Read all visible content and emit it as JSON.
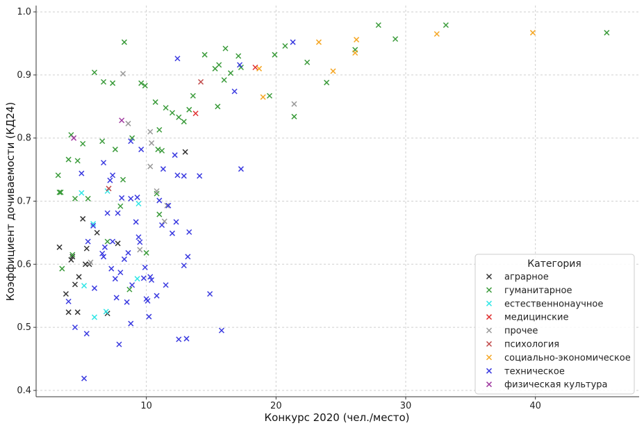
{
  "chart_data": {
    "type": "scatter",
    "title": "",
    "xlabel": "Конкурс 2020 (чел./место)",
    "ylabel": "Коэффициент дочиваемости (КД24)",
    "xlim": [
      1.5,
      48
    ],
    "ylim": [
      0.39,
      1.01
    ],
    "xticks": [
      10,
      20,
      30,
      40
    ],
    "yticks": [
      0.4,
      0.5,
      0.6,
      0.7,
      0.8,
      0.9,
      1.0
    ],
    "xtick_labels": [
      "10",
      "20",
      "30",
      "40"
    ],
    "ytick_labels": [
      "0.4",
      "0.5",
      "0.6",
      "0.7",
      "0.8",
      "0.9",
      "1.0"
    ],
    "grid": true,
    "marker": "x",
    "legend": {
      "title": "Категория",
      "position": "bottom-right"
    },
    "series": [
      {
        "name": "аграрное",
        "color": "#333333",
        "points": [
          [
            3.3,
            0.627
          ],
          [
            3.8,
            0.553
          ],
          [
            4.0,
            0.524
          ],
          [
            4.2,
            0.607
          ],
          [
            4.3,
            0.612
          ],
          [
            4.5,
            0.568
          ],
          [
            4.7,
            0.524
          ],
          [
            4.8,
            0.58
          ],
          [
            5.1,
            0.672
          ],
          [
            5.3,
            0.6
          ],
          [
            5.4,
            0.625
          ],
          [
            5.6,
            0.6
          ],
          [
            6.2,
            0.65
          ],
          [
            7.0,
            0.522
          ],
          [
            7.8,
            0.633
          ],
          [
            13.0,
            0.778
          ]
        ]
      },
      {
        "name": "гуманитарное",
        "color": "#3a9b3a",
        "points": [
          [
            3.2,
            0.741
          ],
          [
            3.3,
            0.714
          ],
          [
            3.4,
            0.714
          ],
          [
            3.5,
            0.593
          ],
          [
            4.0,
            0.766
          ],
          [
            4.2,
            0.805
          ],
          [
            4.3,
            0.615
          ],
          [
            4.5,
            0.704
          ],
          [
            4.7,
            0.764
          ],
          [
            5.1,
            0.791
          ],
          [
            5.5,
            0.704
          ],
          [
            6.0,
            0.904
          ],
          [
            6.6,
            0.795
          ],
          [
            6.7,
            0.889
          ],
          [
            7.0,
            0.636
          ],
          [
            7.4,
            0.887
          ],
          [
            7.6,
            0.782
          ],
          [
            8.0,
            0.692
          ],
          [
            8.2,
            0.734
          ],
          [
            8.3,
            0.952
          ],
          [
            8.7,
            0.56
          ],
          [
            8.9,
            0.8
          ],
          [
            9.6,
            0.887
          ],
          [
            9.9,
            0.883
          ],
          [
            10.0,
            0.618
          ],
          [
            10.7,
            0.857
          ],
          [
            10.8,
            0.712
          ],
          [
            10.9,
            0.782
          ],
          [
            11.0,
            0.679
          ],
          [
            11.2,
            0.78
          ],
          [
            11.5,
            0.848
          ],
          [
            12.0,
            0.84
          ],
          [
            12.5,
            0.833
          ],
          [
            12.9,
            0.826
          ],
          [
            13.3,
            0.845
          ],
          [
            13.6,
            0.867
          ],
          [
            14.5,
            0.932
          ],
          [
            15.3,
            0.91
          ],
          [
            15.6,
            0.916
          ],
          [
            16.0,
            0.892
          ],
          [
            16.1,
            0.942
          ],
          [
            16.5,
            0.903
          ],
          [
            17.1,
            0.93
          ],
          [
            17.3,
            0.912
          ],
          [
            19.5,
            0.867
          ],
          [
            19.9,
            0.932
          ],
          [
            20.7,
            0.946
          ],
          [
            21.4,
            0.834
          ],
          [
            22.4,
            0.92
          ],
          [
            23.9,
            0.888
          ],
          [
            26.1,
            0.94
          ],
          [
            27.9,
            0.979
          ],
          [
            29.2,
            0.957
          ],
          [
            33.1,
            0.979
          ],
          [
            45.5,
            0.967
          ],
          [
            11.0,
            0.813
          ],
          [
            15.5,
            0.85
          ]
        ]
      },
      {
        "name": "естественнонаучное",
        "color": "#33e6e6",
        "points": [
          [
            5.0,
            0.713
          ],
          [
            5.2,
            0.566
          ],
          [
            5.9,
            0.664
          ],
          [
            6.0,
            0.516
          ],
          [
            6.9,
            0.525
          ],
          [
            7.0,
            0.716
          ],
          [
            9.3,
            0.577
          ],
          [
            9.4,
            0.696
          ]
        ]
      },
      {
        "name": "медицинские",
        "color": "#e03030",
        "points": [
          [
            13.8,
            0.839
          ],
          [
            18.4,
            0.912
          ]
        ]
      },
      {
        "name": "прочее",
        "color": "#999999",
        "points": [
          [
            5.7,
            0.603
          ],
          [
            8.2,
            0.902
          ],
          [
            8.6,
            0.823
          ],
          [
            9.5,
            0.623
          ],
          [
            10.3,
            0.81
          ],
          [
            10.4,
            0.792
          ],
          [
            10.3,
            0.755
          ],
          [
            10.8,
            0.716
          ],
          [
            11.4,
            0.668
          ],
          [
            11.6,
            0.693
          ],
          [
            21.4,
            0.854
          ]
        ]
      },
      {
        "name": "психология",
        "color": "#c04848",
        "points": [
          [
            7.1,
            0.72
          ],
          [
            14.2,
            0.889
          ]
        ]
      },
      {
        "name": "социально-экономическое",
        "color": "#f5a623",
        "points": [
          [
            18.7,
            0.91
          ],
          [
            19.0,
            0.865
          ],
          [
            23.3,
            0.952
          ],
          [
            24.4,
            0.906
          ],
          [
            26.1,
            0.935
          ],
          [
            26.2,
            0.956
          ],
          [
            32.4,
            0.965
          ],
          [
            39.8,
            0.967
          ]
        ]
      },
      {
        "name": "техническое",
        "color": "#3a3ae0",
        "points": [
          [
            4.0,
            0.541
          ],
          [
            4.5,
            0.5
          ],
          [
            5.0,
            0.744
          ],
          [
            5.2,
            0.419
          ],
          [
            5.4,
            0.49
          ],
          [
            5.5,
            0.636
          ],
          [
            5.9,
            0.661
          ],
          [
            6.0,
            0.562
          ],
          [
            6.6,
            0.617
          ],
          [
            6.7,
            0.761
          ],
          [
            6.8,
            0.627
          ],
          [
            6.7,
            0.612
          ],
          [
            7.0,
            0.681
          ],
          [
            7.2,
            0.733
          ],
          [
            7.4,
            0.741
          ],
          [
            7.3,
            0.593
          ],
          [
            7.4,
            0.636
          ],
          [
            7.6,
            0.577
          ],
          [
            7.7,
            0.547
          ],
          [
            7.8,
            0.681
          ],
          [
            8.0,
            0.587
          ],
          [
            7.9,
            0.473
          ],
          [
            8.1,
            0.705
          ],
          [
            8.3,
            0.608
          ],
          [
            8.5,
            0.54
          ],
          [
            8.6,
            0.618
          ],
          [
            8.8,
            0.795
          ],
          [
            8.8,
            0.704
          ],
          [
            8.9,
            0.567
          ],
          [
            8.8,
            0.506
          ],
          [
            9.2,
            0.667
          ],
          [
            9.3,
            0.706
          ],
          [
            9.4,
            0.643
          ],
          [
            9.5,
            0.635
          ],
          [
            9.6,
            0.782
          ],
          [
            9.8,
            0.578
          ],
          [
            9.9,
            0.595
          ],
          [
            10.0,
            0.545
          ],
          [
            10.1,
            0.542
          ],
          [
            10.2,
            0.517
          ],
          [
            10.3,
            0.58
          ],
          [
            10.4,
            0.575
          ],
          [
            10.8,
            0.55
          ],
          [
            11.0,
            0.701
          ],
          [
            11.2,
            0.662
          ],
          [
            11.3,
            0.751
          ],
          [
            11.5,
            0.567
          ],
          [
            11.7,
            0.693
          ],
          [
            12.0,
            0.649
          ],
          [
            12.2,
            0.773
          ],
          [
            12.3,
            0.667
          ],
          [
            12.4,
            0.741
          ],
          [
            12.4,
            0.926
          ],
          [
            12.5,
            0.481
          ],
          [
            12.9,
            0.598
          ],
          [
            12.9,
            0.74
          ],
          [
            13.1,
            0.482
          ],
          [
            13.2,
            0.612
          ],
          [
            13.3,
            0.651
          ],
          [
            14.1,
            0.74
          ],
          [
            14.9,
            0.553
          ],
          [
            15.8,
            0.495
          ],
          [
            16.8,
            0.874
          ],
          [
            17.2,
            0.916
          ],
          [
            17.3,
            0.751
          ],
          [
            21.3,
            0.952
          ]
        ]
      },
      {
        "name": "физическая культура",
        "color": "#a03aa0",
        "points": [
          [
            4.4,
            0.8
          ],
          [
            8.1,
            0.828
          ]
        ]
      }
    ]
  }
}
